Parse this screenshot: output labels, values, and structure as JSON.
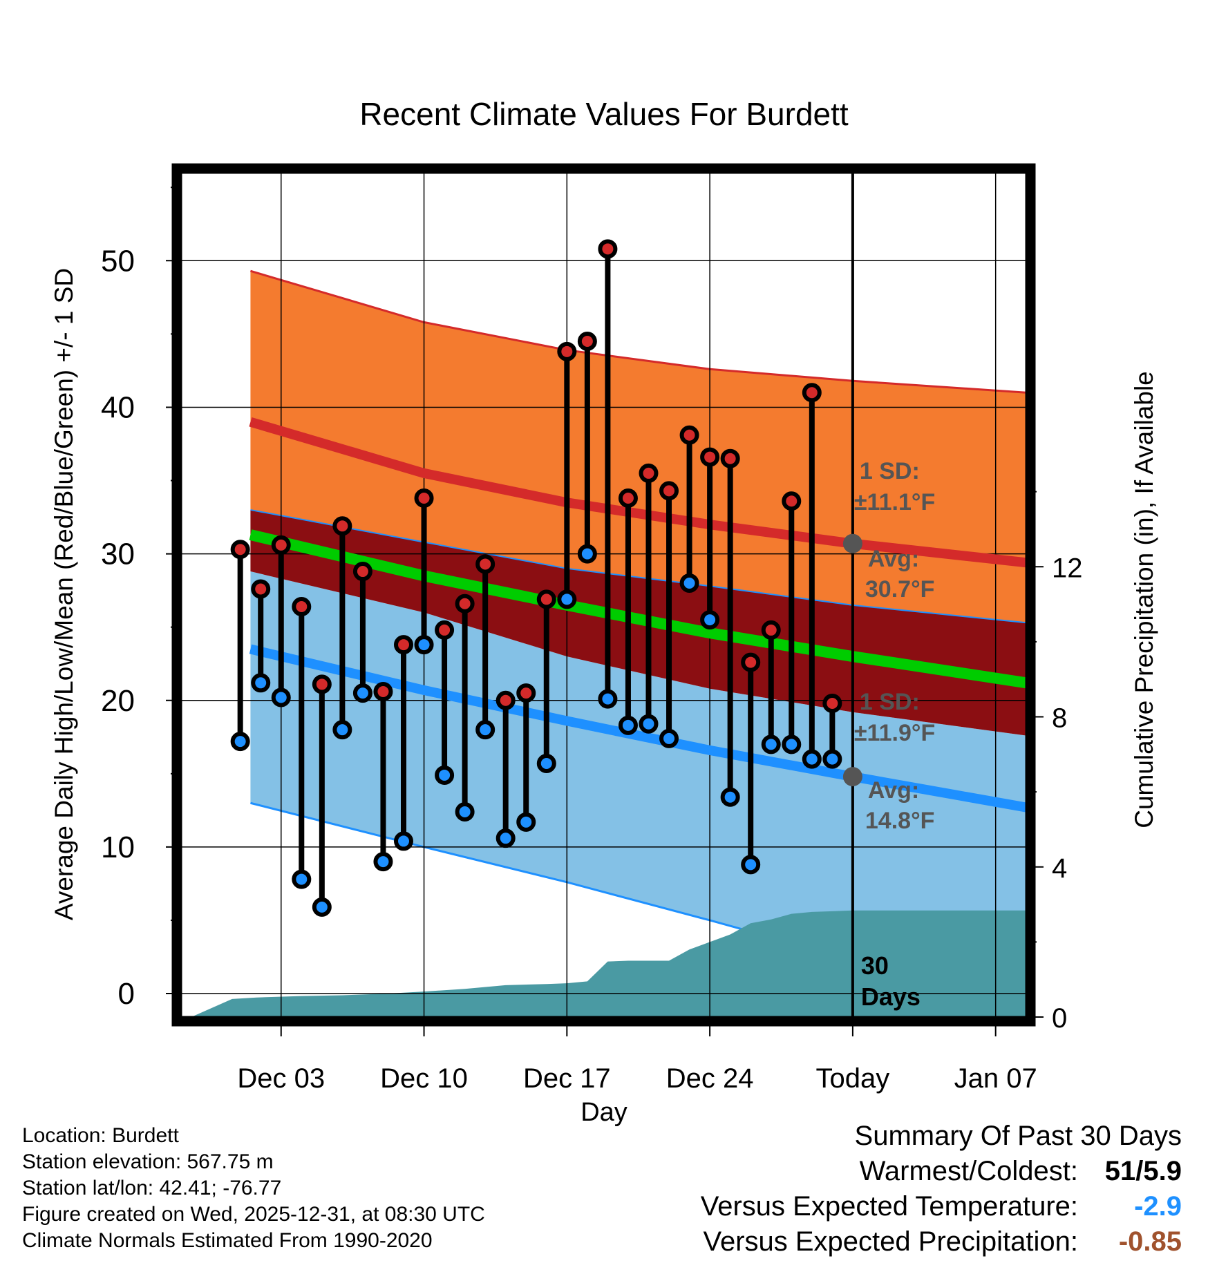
{
  "chart_data": {
    "type": "line",
    "title": "Recent Climate Values For Burdett",
    "xlabel": "Day",
    "ylabel": "Average Daily High/Low/Mean (Red/Blue/Green) +/- 1 SD",
    "ylabel_right": "Cumulative Precipitation (in), If Available",
    "ylim": [
      -1.6,
      56
    ],
    "y_ticks": [
      0,
      10,
      20,
      30,
      40,
      50
    ],
    "y_right_ticks": [
      0,
      4,
      8,
      12
    ],
    "y_right_lim": [
      0,
      22.5
    ],
    "x_day_range": [
      -1.9,
      39.5
    ],
    "x_ticks": [
      {
        "day": 3,
        "label": "Dec 03"
      },
      {
        "day": 10,
        "label": "Dec 10"
      },
      {
        "day": 17,
        "label": "Dec 17"
      },
      {
        "day": 24,
        "label": "Dec 24"
      },
      {
        "day": 31,
        "label": "Today"
      },
      {
        "day": 38,
        "label": "Jan 07"
      }
    ],
    "today_day": 31,
    "normals": {
      "days": [
        1.5,
        10,
        17,
        24,
        31,
        39.5
      ],
      "high_avg": [
        39.0,
        35.5,
        33.5,
        32.0,
        30.7,
        29.4
      ],
      "high_sd_upper": [
        49.3,
        45.8,
        43.9,
        42.6,
        41.8,
        41.0
      ],
      "high_sd_lower": [
        33.0,
        30.8,
        29.0,
        27.8,
        26.5,
        25.3
      ],
      "mean_avg": [
        31.3,
        28.5,
        26.5,
        24.6,
        23.0,
        21.2
      ],
      "low_avg": [
        23.5,
        20.7,
        18.6,
        16.6,
        14.8,
        12.7
      ],
      "low_sd_upper": [
        28.8,
        26.0,
        23.0,
        20.8,
        19.2,
        17.6
      ],
      "low_sd_lower": [
        13.0,
        10.0,
        7.6,
        5.0,
        2.3,
        0.0
      ]
    },
    "observations": {
      "days": [
        1,
        2,
        3,
        4,
        5,
        6,
        7,
        8,
        9,
        10,
        11,
        12,
        13,
        14,
        15,
        16,
        17,
        18,
        19,
        20,
        21,
        22,
        23,
        24,
        25,
        26,
        27,
        28,
        29,
        30
      ],
      "highs": [
        30.3,
        27.6,
        30.6,
        26.4,
        21.1,
        31.9,
        28.8,
        20.6,
        23.8,
        33.8,
        24.8,
        26.6,
        29.3,
        20.0,
        20.5,
        26.9,
        43.8,
        44.5,
        50.8,
        33.8,
        35.5,
        34.3,
        38.1,
        36.6,
        36.5,
        22.6,
        24.8,
        33.6,
        41.0,
        19.8
      ],
      "lows": [
        17.2,
        21.2,
        20.2,
        7.8,
        5.9,
        18.0,
        20.5,
        9.0,
        10.4,
        23.8,
        14.9,
        12.4,
        18.0,
        10.6,
        11.7,
        15.7,
        26.9,
        30.0,
        20.1,
        18.3,
        18.4,
        17.4,
        28.0,
        25.5,
        13.4,
        8.8,
        17.0,
        17.0,
        16.0,
        16.0
      ]
    },
    "precipitation": {
      "days": [
        -1.4,
        0.6,
        1.8,
        4,
        6,
        8,
        10,
        12,
        14,
        16,
        17,
        18,
        19,
        20,
        21,
        22,
        23,
        24,
        25,
        26,
        27,
        28,
        29,
        30,
        31,
        39.5
      ],
      "values": [
        0,
        0.48,
        0.52,
        0.56,
        0.58,
        0.62,
        0.68,
        0.75,
        0.85,
        0.88,
        0.9,
        0.95,
        1.48,
        1.5,
        1.5,
        1.5,
        1.8,
        2.0,
        2.2,
        2.5,
        2.6,
        2.75,
        2.8,
        2.82,
        2.84,
        2.84
      ]
    },
    "annotations": {
      "high_sd_label": "1 SD:",
      "high_sd_value": "±11.1°F",
      "high_avg_label": "Avg:",
      "high_avg_value": "30.7°F",
      "low_sd_label": "1 SD:",
      "low_sd_value": "±11.9°F",
      "low_avg_label": "Avg:",
      "low_avg_value": "14.8°F",
      "days_count": "30",
      "days_word": "Days"
    }
  },
  "station_info": {
    "location": "Location: Burdett",
    "elevation": "Station elevation: 567.75 m",
    "latlon": "Station lat/lon: 42.41; -76.77",
    "created": "Figure created on Wed, 2025-12-31, at 08:30 UTC",
    "normals": "Climate Normals Estimated From 1990-2020"
  },
  "summary": {
    "title": "Summary Of Past 30 Days",
    "warm_cold_label": "Warmest/Coldest:",
    "warm_cold_value": "51/5.9",
    "temp_label": "Versus Expected Temperature:",
    "temp_value": "-2.9",
    "temp_color": "#1e90ff",
    "precip_label": "Versus Expected Precipitation:",
    "precip_value": "-0.85",
    "precip_color": "#a0522d"
  },
  "colors": {
    "high_band": "#f47b2f",
    "high_line": "#d42a2a",
    "overlap_band": "#8b0e12",
    "mean_line": "#00cc00",
    "low_band": "#84c1e6",
    "low_line": "#1e90ff",
    "precip_fill": "#4a9aa3",
    "dot_high": "#d42a2a",
    "dot_low": "#1e90ff",
    "annotation": "#555555"
  }
}
